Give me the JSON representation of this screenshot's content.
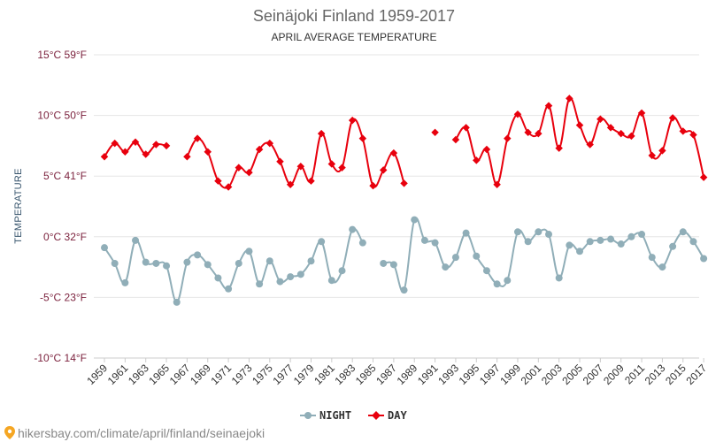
{
  "colors": {
    "night": "#90aeb8",
    "day": "#e8000d",
    "title": "#666666",
    "tick": "#7a1f3b",
    "footer": "#888888"
  },
  "chart_data": {
    "type": "line",
    "title": "Seinäjoki Finland 1959-2017",
    "subtitle": "APRIL AVERAGE TEMPERATURE",
    "ylabel": "TEMPERATURE",
    "xlabel": "",
    "ylim": [
      -10,
      15
    ],
    "y_ticks": [
      {
        "value": 15,
        "label": "15°C 59°F"
      },
      {
        "value": 10,
        "label": "10°C 50°F"
      },
      {
        "value": 5,
        "label": "5°C 41°F"
      },
      {
        "value": 0,
        "label": "0°C 32°F"
      },
      {
        "value": -5,
        "label": "-5°C 23°F"
      },
      {
        "value": -10,
        "label": "-10°C 14°F"
      }
    ],
    "x_ticks": [
      "1959",
      "1961",
      "1963",
      "1965",
      "1967",
      "1969",
      "1971",
      "1973",
      "1975",
      "1977",
      "1979",
      "1981",
      "1983",
      "1985",
      "1987",
      "1989",
      "1991",
      "1993",
      "1995",
      "1997",
      "1999",
      "2001",
      "2003",
      "2005",
      "2007",
      "2009",
      "2011",
      "2013",
      "2015",
      "2017"
    ],
    "grid": true,
    "legend_position": "bottom-center",
    "x": [
      1959,
      1960,
      1961,
      1962,
      1963,
      1964,
      1965,
      1966,
      1967,
      1968,
      1969,
      1970,
      1971,
      1972,
      1973,
      1974,
      1975,
      1976,
      1977,
      1978,
      1979,
      1980,
      1981,
      1982,
      1983,
      1984,
      1985,
      1986,
      1987,
      1988,
      1989,
      1990,
      1991,
      1992,
      1993,
      1994,
      1995,
      1996,
      1997,
      1998,
      1999,
      2000,
      2001,
      2002,
      2003,
      2004,
      2005,
      2006,
      2007,
      2008,
      2009,
      2010,
      2011,
      2012,
      2013,
      2014,
      2015,
      2016,
      2017
    ],
    "series": [
      {
        "name": "NIGHT",
        "marker": "circle",
        "values": [
          -0.9,
          -2.2,
          -3.8,
          -0.3,
          -2.1,
          -2.2,
          -2.4,
          -5.4,
          -2.1,
          -1.5,
          -2.3,
          -3.4,
          -4.3,
          -2.2,
          -1.2,
          -3.9,
          -2.0,
          -3.7,
          -3.3,
          -3.1,
          -2.0,
          -0.4,
          -3.6,
          -2.8,
          0.6,
          -0.5,
          null,
          -2.2,
          -2.3,
          -4.4,
          1.4,
          -0.3,
          -0.5,
          -2.5,
          -1.7,
          0.3,
          -1.6,
          -2.8,
          -3.9,
          -3.6,
          0.4,
          -0.4,
          0.4,
          0.2,
          -3.4,
          -0.7,
          -1.2,
          -0.4,
          -0.3,
          -0.2,
          -0.6,
          0.0,
          0.2,
          -1.7,
          -2.5,
          -0.8,
          0.4,
          -0.4,
          -1.8
        ]
      },
      {
        "name": "DAY",
        "marker": "diamond",
        "values": [
          6.6,
          7.7,
          7.0,
          7.8,
          6.8,
          7.6,
          7.5,
          null,
          6.6,
          8.1,
          7.0,
          4.6,
          4.1,
          5.7,
          5.3,
          7.2,
          7.7,
          6.2,
          4.3,
          5.8,
          4.6,
          8.5,
          6.0,
          5.7,
          9.6,
          8.1,
          4.2,
          5.5,
          6.9,
          4.4,
          null,
          null,
          8.6,
          null,
          8.0,
          9.0,
          6.3,
          7.2,
          4.3,
          8.1,
          10.1,
          8.6,
          8.5,
          10.8,
          7.3,
          11.4,
          9.2,
          7.6,
          9.7,
          9.0,
          8.5,
          8.3,
          10.2,
          6.7,
          7.1,
          9.8,
          8.7,
          8.4,
          4.9
        ]
      }
    ]
  },
  "legend": {
    "night_label": "NIGHT",
    "day_label": "DAY"
  },
  "footer": {
    "url": "hikersbay.com/climate/april/finland/seinaejoki",
    "icon": "location-pin-icon"
  }
}
